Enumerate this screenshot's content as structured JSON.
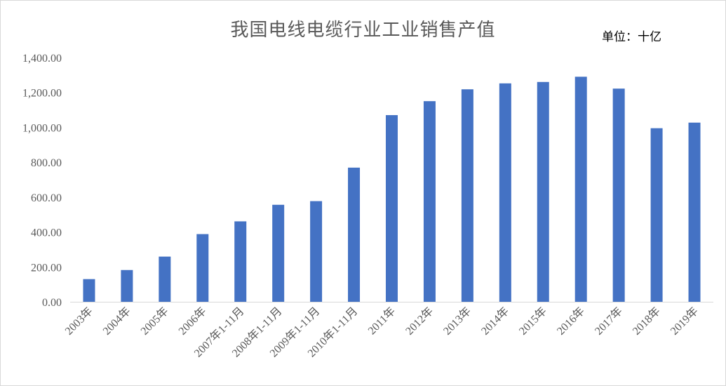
{
  "chart_data": {
    "type": "bar",
    "title": "我国电线电缆行业工业销售产值",
    "unit_label": "单位：十亿",
    "categories": [
      "2003年",
      "2004年",
      "2005年",
      "2006年",
      "2007年1-11月",
      "2008年1-11月",
      "2009年1-11月",
      "2010年1-11月",
      "2011年",
      "2012年",
      "2013年",
      "2014年",
      "2015年",
      "2016年",
      "2017年",
      "2018年",
      "2019年"
    ],
    "values": [
      130,
      182,
      259,
      388,
      461,
      556,
      577,
      769,
      1070,
      1150,
      1218,
      1252,
      1260,
      1290,
      1222,
      995,
      1027
    ],
    "ylim": [
      0,
      1400
    ],
    "yticks": [
      "0.00",
      "200.00",
      "400.00",
      "600.00",
      "800.00",
      "1,000.00",
      "1,200.00",
      "1,400.00"
    ],
    "grid": false,
    "legend": "none",
    "bar_color": "#4472c4",
    "axis_color": "#d9d9d9",
    "xlabel": "",
    "ylabel": ""
  }
}
